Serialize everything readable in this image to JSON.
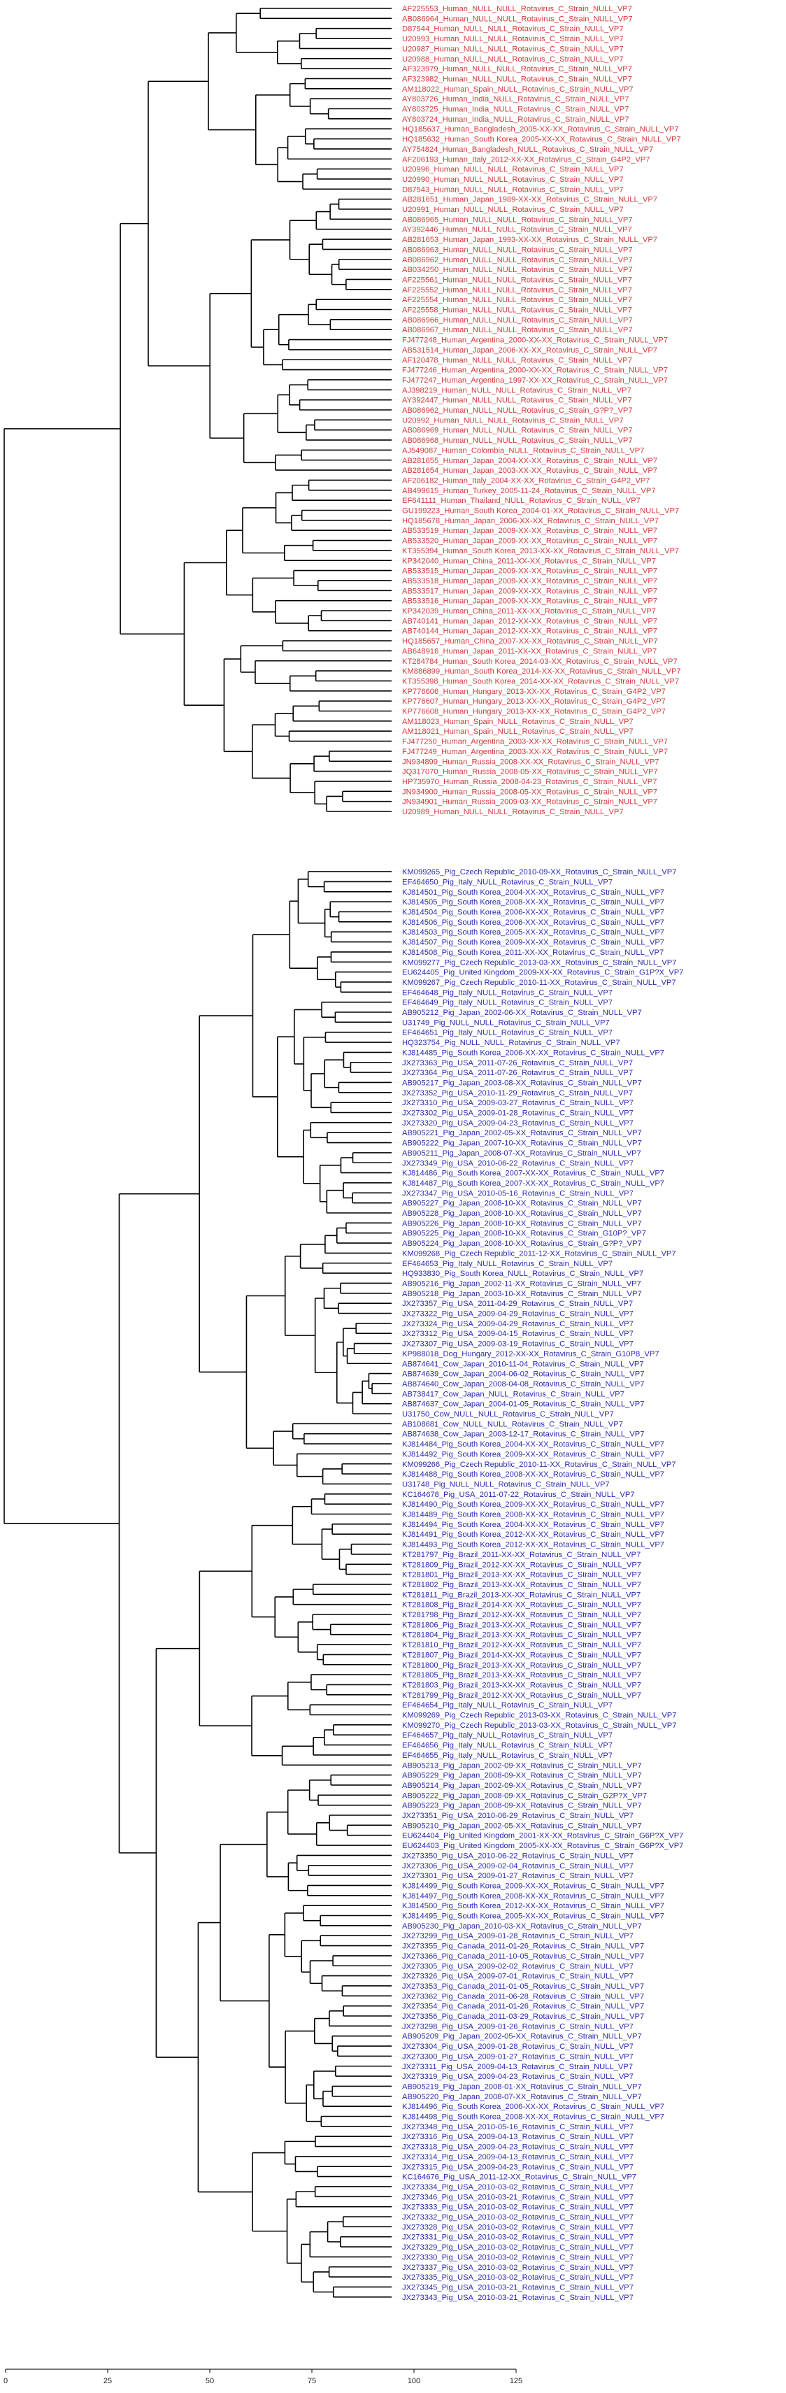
{
  "colors": {
    "human": "#d23a3a",
    "animal": "#2b2bb0",
    "branch": "#000000",
    "guide": "#cfcfcf",
    "axis": "#222222"
  },
  "scale_axis": {
    "min": 0,
    "max": 125,
    "ticks": [
      0,
      25,
      50,
      75,
      100,
      125
    ],
    "tick_labels": [
      "0",
      "25",
      "50",
      "75",
      "100",
      "125"
    ]
  },
  "human_leaves": [
    "AF225553_Human_NULL_NULL_Rotavirus_C_Strain_NULL_VP7",
    "AB086964_Human_NULL_NULL_Rotavirus_C_Strain_NULL_VP7",
    "D87544_Human_NULL_NULL_Rotavirus_C_Strain_NULL_VP7",
    "U20993_Human_NULL_NULL_Rotavirus_C_Strain_NULL_VP7",
    "U20987_Human_NULL_NULL_Rotavirus_C_Strain_NULL_VP7",
    "U20988_Human_NULL_NULL_Rotavirus_C_Strain_NULL_VP7",
    "AF323979_Human_NULL_NULL_Rotavirus_C_Strain_NULL_VP7",
    "AF323982_Human_NULL_NULL_Rotavirus_C_Strain_NULL_VP7",
    "AM118022_Human_Spain_NULL_Rotavirus_C_Strain_NULL_VP7",
    "AY803726_Human_India_NULL_Rotavirus_C_Strain_NULL_VP7",
    "AY803725_Human_India_NULL_Rotavirus_C_Strain_NULL_VP7",
    "AY803724_Human_India_NULL_Rotavirus_C_Strain_NULL_VP7",
    "HQ185637_Human_Bangladesh_2005-XX-XX_Rotavirus_C_Strain_NULL_VP7",
    "HQ185632_Human_South Korea_2005-XX-XX_Rotavirus_C_Strain_NULL_VP7",
    "AY754824_Human_Bangladesh_NULL_Rotavirus_C_Strain_NULL_VP7",
    "AF206193_Human_Italy_2012-XX-XX_Rotavirus_C_Strain_G4P2_VP7",
    "U20996_Human_NULL_NULL_Rotavirus_C_Strain_NULL_VP7",
    "U20990_Human_NULL_NULL_Rotavirus_C_Strain_NULL_VP7",
    "D87543_Human_NULL_NULL_Rotavirus_C_Strain_NULL_VP7",
    "AB281651_Human_Japan_1989-XX-XX_Rotavirus_C_Strain_NULL_VP7",
    "U20991_Human_NULL_NULL_Rotavirus_C_Strain_NULL_VP7",
    "AB086965_Human_NULL_NULL_Rotavirus_C_Strain_NULL_VP7",
    "AY392446_Human_NULL_NULL_Rotavirus_C_Strain_NULL_VP7",
    "AB281653_Human_Japan_1993-XX-XX_Rotavirus_C_Strain_NULL_VP7",
    "AB086963_Human_NULL_NULL_Rotavirus_C_Strain_NULL_VP7",
    "AB086962_Human_NULL_NULL_Rotavirus_C_Strain_NULL_VP7",
    "AB034250_Human_NULL_NULL_Rotavirus_C_Strain_NULL_VP7",
    "AF225561_Human_NULL_NULL_Rotavirus_C_Strain_NULL_VP7",
    "AF225552_Human_NULL_NULL_Rotavirus_C_Strain_NULL_VP7",
    "AF225554_Human_NULL_NULL_Rotavirus_C_Strain_NULL_VP7",
    "AF225558_Human_NULL_NULL_Rotavirus_C_Strain_NULL_VP7",
    "AB086966_Human_NULL_NULL_Rotavirus_C_Strain_NULL_VP7",
    "AB086967_Human_NULL_NULL_Rotavirus_C_Strain_NULL_VP7",
    "FJ477248_Human_Argentina_2000-XX-XX_Rotavirus_C_Strain_NULL_VP7",
    "AB531514_Human_Japan_2006-XX-XX_Rotavirus_C_Strain_NULL_VP7",
    "AF120478_Human_NULL_NULL_Rotavirus_C_Strain_NULL_VP7",
    "FJ477246_Human_Argentina_2000-XX-XX_Rotavirus_C_Strain_NULL_VP7",
    "FJ477247_Human_Argentina_1997-XX-XX_Rotavirus_C_Strain_NULL_VP7",
    "AJ398219_Human_NULL_NULL_Rotavirus_C_Strain_NULL_VP7",
    "AY392447_Human_NULL_NULL_Rotavirus_C_Strain_NULL_VP7",
    "AB086962_Human_NULL_NULL_Rotavirus_C_Strain_G?P?_VP7",
    "U20992_Human_NULL_NULL_Rotavirus_C_Strain_NULL_VP7",
    "AB086969_Human_NULL_NULL_Rotavirus_C_Strain_NULL_VP7",
    "AB086968_Human_NULL_NULL_Rotavirus_C_Strain_NULL_VP7",
    "AJ549087_Human_Colombia_NULL_Rotavirus_C_Strain_NULL_VP7",
    "AB281655_Human_Japan_2004-XX-XX_Rotavirus_C_Strain_NULL_VP7",
    "AB281654_Human_Japan_2003-XX-XX_Rotavirus_C_Strain_NULL_VP7",
    "AF206182_Human_Italy_2004-XX-XX_Rotavirus_C_Strain_G4P2_VP7",
    "AB499615_Human_Turkey_2005-11-24_Rotavirus_C_Strain_NULL_VP7",
    "EF641111_Human_Thailand_NULL_Rotavirus_C_Strain_NULL_VP7",
    "GU199223_Human_South Korea_2004-01-XX_Rotavirus_C_Strain_NULL_VP7",
    "HQ185678_Human_Japan_2006-XX-XX_Rotavirus_C_Strain_NULL_VP7",
    "AB533519_Human_Japan_2009-XX-XX_Rotavirus_C_Strain_NULL_VP7",
    "AB533520_Human_Japan_2009-XX-XX_Rotavirus_C_Strain_NULL_VP7",
    "KT355394_Human_South Korea_2013-XX-XX_Rotavirus_C_Strain_NULL_VP7",
    "KP342040_Human_China_2011-XX-XX_Rotavirus_C_Strain_NULL_VP7",
    "AB533515_Human_Japan_2009-XX-XX_Rotavirus_C_Strain_NULL_VP7",
    "AB533518_Human_Japan_2009-XX-XX_Rotavirus_C_Strain_NULL_VP7",
    "AB533517_Human_Japan_2009-XX-XX_Rotavirus_C_Strain_NULL_VP7",
    "AB533516_Human_Japan_2009-XX-XX_Rotavirus_C_Strain_NULL_VP7",
    "KP342039_Human_China_2011-XX-XX_Rotavirus_C_Strain_NULL_VP7",
    "AB740141_Human_Japan_2012-XX-XX_Rotavirus_C_Strain_NULL_VP7",
    "AB740144_Human_Japan_2012-XX-XX_Rotavirus_C_Strain_NULL_VP7",
    "HQ185657_Human_China_2007-XX-XX_Rotavirus_C_Strain_NULL_VP7",
    "AB648916_Human_Japan_2011-XX-XX_Rotavirus_C_Strain_NULL_VP7",
    "KT284784_Human_South Korea_2014-03-XX_Rotavirus_C_Strain_NULL_VP7",
    "KM886899_Human_South Korea_2014-XX-XX_Rotavirus_C_Strain_NULL_VP7",
    "KT355398_Human_South Korea_2014-XX-XX_Rotavirus_C_Strain_NULL_VP7",
    "KP776606_Human_Hungary_2013-XX-XX_Rotavirus_C_Strain_G4P2_VP7",
    "KP776607_Human_Hungary_2013-XX-XX_Rotavirus_C_Strain_G4P2_VP7",
    "KP776608_Human_Hungary_2013-XX-XX_Rotavirus_C_Strain_G4P2_VP7",
    "AM118023_Human_Spain_NULL_Rotavirus_C_Strain_NULL_VP7",
    "AM118021_Human_Spain_NULL_Rotavirus_C_Strain_NULL_VP7",
    "FJ477250_Human_Argentina_2003-XX-XX_Rotavirus_C_Strain_NULL_VP7",
    "FJ477249_Human_Argentina_2003-XX-XX_Rotavirus_C_Strain_NULL_VP7",
    "JN934899_Human_Russia_2008-XX-XX_Rotavirus_C_Strain_NULL_VP7",
    "JQ317070_Human_Russia_2008-05-XX_Rotavirus_C_Strain_NULL_VP7",
    "HP735970_Human_Russia_2008-04-23_Rotavirus_C_Strain_NULL_VP7",
    "JN934900_Human_Russia_2008-05-XX_Rotavirus_C_Strain_NULL_VP7",
    "JN934901_Human_Russia_2009-03-XX_Rotavirus_C_Strain_NULL_VP7",
    "U20989_Human_NULL_NULL_Rotavirus_C_Strain_NULL_VP7"
  ],
  "animal_leaves": [
    "KM099265_Pig_Czech Republic_2010-09-XX_Rotavirus_C_Strain_NULL_VP7",
    "EF464650_Pig_Italy_NULL_Rotavirus_C_Strain_NULL_VP7",
    "KJ814501_Pig_South Korea_2004-XX-XX_Rotavirus_C_Strain_NULL_VP7",
    "KJ814505_Pig_South Korea_2008-XX-XX_Rotavirus_C_Strain_NULL_VP7",
    "KJ814504_Pig_South Korea_2006-XX-XX_Rotavirus_C_Strain_NULL_VP7",
    "KJ814506_Pig_South Korea_2006-XX-XX_Rotavirus_C_Strain_NULL_VP7",
    "KJ814503_Pig_South Korea_2005-XX-XX_Rotavirus_C_Strain_NULL_VP7",
    "KJ814507_Pig_South Korea_2009-XX-XX_Rotavirus_C_Strain_NULL_VP7",
    "KJ814508_Pig_South Korea_2011-XX-XX_Rotavirus_C_Strain_NULL_VP7",
    "KM099277_Pig_Czech Republic_2013-03-XX_Rotavirus_C_Strain_NULL_VP7",
    "EU624405_Pig_United Kingdom_2009-XX-XX_Rotavirus_C_Strain_G1P?X_VP7",
    "KM099267_Pig_Czech Republic_2010-11-XX_Rotavirus_C_Strain_NULL_VP7",
    "EF464648_Pig_Italy_NULL_Rotavirus_C_Strain_NULL_VP7",
    "EF464649_Pig_Italy_NULL_Rotavirus_C_Strain_NULL_VP7",
    "AB905212_Pig_Japan_2002-06-XX_Rotavirus_C_Strain_NULL_VP7",
    "U31749_Pig_NULL_NULL_Rotavirus_C_Strain_NULL_VP7",
    "EF464651_Pig_Italy_NULL_Rotavirus_C_Strain_NULL_VP7",
    "HQ323754_Pig_NULL_NULL_Rotavirus_C_Strain_NULL_VP7",
    "KJ814485_Pig_South Korea_2006-XX-XX_Rotavirus_C_Strain_NULL_VP7",
    "JX273363_Pig_USA_2011-07-26_Rotavirus_C_Strain_NULL_VP7",
    "JX273364_Pig_USA_2011-07-26_Rotavirus_C_Strain_NULL_VP7",
    "AB905217_Pig_Japan_2003-08-XX_Rotavirus_C_Strain_NULL_VP7",
    "JX273352_Pig_USA_2010-11-29_Rotavirus_C_Strain_NULL_VP7",
    "JX273310_Pig_USA_2009-03-27_Rotavirus_C_Strain_NULL_VP7",
    "JX273302_Pig_USA_2009-01-28_Rotavirus_C_Strain_NULL_VP7",
    "JX273320_Pig_USA_2009-04-23_Rotavirus_C_Strain_NULL_VP7",
    "AB905221_Pig_Japan_2002-05-XX_Rotavirus_C_Strain_NULL_VP7",
    "AB905222_Pig_Japan_2007-10-XX_Rotavirus_C_Strain_NULL_VP7",
    "AB905211_Pig_Japan_2008-07-XX_Rotavirus_C_Strain_NULL_VP7",
    "JX273349_Pig_USA_2010-06-22_Rotavirus_C_Strain_NULL_VP7",
    "KJ814486_Pig_South Korea_2007-XX-XX_Rotavirus_C_Strain_NULL_VP7",
    "KJ814487_Pig_South Korea_2007-XX-XX_Rotavirus_C_Strain_NULL_VP7",
    "JX273347_Pig_USA_2010-05-16_Rotavirus_C_Strain_NULL_VP7",
    "AB905227_Pig_Japan_2008-10-XX_Rotavirus_C_Strain_NULL_VP7",
    "AB905228_Pig_Japan_2008-10-XX_Rotavirus_C_Strain_NULL_VP7",
    "AB905226_Pig_Japan_2008-10-XX_Rotavirus_C_Strain_NULL_VP7",
    "AB905225_Pig_Japan_2008-10-XX_Rotavirus_C_Strain_G10P?_VP7",
    "AB905224_Pig_Japan_2008-10-XX_Rotavirus_C_Strain_G?P?_VP7",
    "KM099268_Pig_Czech Republic_2011-12-XX_Rotavirus_C_Strain_NULL_VP7",
    "EF464653_Pig_Italy_NULL_Rotavirus_C_Strain_NULL_VP7",
    "HQ933830_Pig_South Korea_NULL_Rotavirus_C_Strain_NULL_VP7",
    "AB905216_Pig_Japan_2002-11-XX_Rotavirus_C_Strain_NULL_VP7",
    "AB905218_Pig_Japan_2003-10-XX_Rotavirus_C_Strain_NULL_VP7",
    "JX273357_Pig_USA_2011-04-29_Rotavirus_C_Strain_NULL_VP7",
    "JX273322_Pig_USA_2009-04-29_Rotavirus_C_Strain_NULL_VP7",
    "JX273324_Pig_USA_2009-04-29_Rotavirus_C_Strain_NULL_VP7",
    "JX273312_Pig_USA_2009-04-15_Rotavirus_C_Strain_NULL_VP7",
    "JX273307_Pig_USA_2009-03-19_Rotavirus_C_Strain_NULL_VP7",
    "KP988018_Dog_Hungary_2012-XX-XX_Rotavirus_C_Strain_G10P8_VP7",
    "AB874641_Cow_Japan_2010-11-04_Rotavirus_C_Strain_NULL_VP7",
    "AB874639_Cow_Japan_2004-06-02_Rotavirus_C_Strain_NULL_VP7",
    "AB874640_Cow_Japan_2008-04-08_Rotavirus_C_Strain_NULL_VP7",
    "AB738417_Cow_Japan_NULL_Rotavirus_C_Strain_NULL_VP7",
    "AB874637_Cow_Japan_2004-01-05_Rotavirus_C_Strain_NULL_VP7",
    "U31750_Cow_NULL_NULL_Rotavirus_C_Strain_NULL_VP7",
    "AB108681_Cow_NULL_NULL_Rotavirus_C_Strain_NULL_VP7",
    "AB874638_Cow_Japan_2003-12-17_Rotavirus_C_Strain_NULL_VP7",
    "KJ814484_Pig_South Korea_2004-XX-XX_Rotavirus_C_Strain_NULL_VP7",
    "KJ814492_Pig_South Korea_2009-XX-XX_Rotavirus_C_Strain_NULL_VP7",
    "KM099266_Pig_Czech Republic_2010-11-XX_Rotavirus_C_Strain_NULL_VP7",
    "KJ814488_Pig_South Korea_2008-XX-XX_Rotavirus_C_Strain_NULL_VP7",
    "U31748_Pig_NULL_NULL_Rotavirus_C_Strain_NULL_VP7",
    "KC164678_Pig_USA_2011-07-22_Rotavirus_C_Strain_NULL_VP7",
    "KJ814490_Pig_South Korea_2009-XX-XX_Rotavirus_C_Strain_NULL_VP7",
    "KJ814489_Pig_South Korea_2008-XX-XX_Rotavirus_C_Strain_NULL_VP7",
    "KJ814494_Pig_South Korea_2004-XX-XX_Rotavirus_C_Strain_NULL_VP7",
    "KJ814491_Pig_South Korea_2012-XX-XX_Rotavirus_C_Strain_NULL_VP7",
    "KJ814493_Pig_South Korea_2012-XX-XX_Rotavirus_C_Strain_NULL_VP7",
    "KT281797_Pig_Brazil_2011-XX-XX_Rotavirus_C_Strain_NULL_VP7",
    "KT281809_Pig_Brazil_2012-XX-XX_Rotavirus_C_Strain_NULL_VP7",
    "KT281801_Pig_Brazil_2013-XX-XX_Rotavirus_C_Strain_NULL_VP7",
    "KT281802_Pig_Brazil_2013-XX-XX_Rotavirus_C_Strain_NULL_VP7",
    "KT281811_Pig_Brazil_2013-XX-XX_Rotavirus_C_Strain_NULL_VP7",
    "KT281808_Pig_Brazil_2014-XX-XX_Rotavirus_C_Strain_NULL_VP7",
    "KT281798_Pig_Brazil_2012-XX-XX_Rotavirus_C_Strain_NULL_VP7",
    "KT281806_Pig_Brazil_2013-XX-XX_Rotavirus_C_Strain_NULL_VP7",
    "KT281804_Pig_Brazil_2013-XX-XX_Rotavirus_C_Strain_NULL_VP7",
    "KT281810_Pig_Brazil_2012-XX-XX_Rotavirus_C_Strain_NULL_VP7",
    "KT281807_Pig_Brazil_2014-XX-XX_Rotavirus_C_Strain_NULL_VP7",
    "KT281800_Pig_Brazil_2013-XX-XX_Rotavirus_C_Strain_NULL_VP7",
    "KT281805_Pig_Brazil_2013-XX-XX_Rotavirus_C_Strain_NULL_VP7",
    "KT281803_Pig_Brazil_2013-XX-XX_Rotavirus_C_Strain_NULL_VP7",
    "KT281799_Pig_Brazil_2012-XX-XX_Rotavirus_C_Strain_NULL_VP7",
    "EF464654_Pig_Italy_NULL_Rotavirus_C_Strain_NULL_VP7",
    "KM099269_Pig_Czech Republic_2013-03-XX_Rotavirus_C_Strain_NULL_VP7",
    "KM099270_Pig_Czech Republic_2013-03-XX_Rotavirus_C_Strain_NULL_VP7",
    "EF464657_Pig_Italy_NULL_Rotavirus_C_Strain_NULL_VP7",
    "EF464656_Pig_Italy_NULL_Rotavirus_C_Strain_NULL_VP7",
    "EF464655_Pig_Italy_NULL_Rotavirus_C_Strain_NULL_VP7",
    "AB905213_Pig_Japan_2002-09-XX_Rotavirus_C_Strain_NULL_VP7",
    "AB905229_Pig_Japan_2008-09-XX_Rotavirus_C_Strain_NULL_VP7",
    "AB905214_Pig_Japan_2002-09-XX_Rotavirus_C_Strain_NULL_VP7",
    "AB905222_Pig_Japan_2008-09-XX_Rotavirus_C_Strain_G2P?X_VP7",
    "AB905223_Pig_Japan_2008-09-XX_Rotavirus_C_Strain_NULL_VP7",
    "JX273351_Pig_USA_2010-06-29_Rotavirus_C_Strain_NULL_VP7",
    "AB905210_Pig_Japan_2002-05-XX_Rotavirus_C_Strain_NULL_VP7",
    "EU624404_Pig_United Kingdom_2001-XX-XX_Rotavirus_C_Strain_G6P?X_VP7",
    "EU624403_Pig_United Kingdom_2005-XX-XX_Rotavirus_C_Strain_G6P?X_VP7",
    "JX273350_Pig_USA_2010-06-22_Rotavirus_C_Strain_NULL_VP7",
    "JX273306_Pig_USA_2009-02-04_Rotavirus_C_Strain_NULL_VP7",
    "JX273301_Pig_USA_2009-01-27_Rotavirus_C_Strain_NULL_VP7",
    "KJ814499_Pig_South Korea_2009-XX-XX_Rotavirus_C_Strain_NULL_VP7",
    "KJ814497_Pig_South Korea_2008-XX-XX_Rotavirus_C_Strain_NULL_VP7",
    "KJ814500_Pig_South Korea_2012-XX-XX_Rotavirus_C_Strain_NULL_VP7",
    "KJ814495_Pig_South Korea_2005-XX-XX_Rotavirus_C_Strain_NULL_VP7",
    "AB905230_Pig_Japan_2010-03-XX_Rotavirus_C_Strain_NULL_VP7",
    "JX273299_Pig_USA_2009-01-28_Rotavirus_C_Strain_NULL_VP7",
    "JX273355_Pig_Canada_2011-01-26_Rotavirus_C_Strain_NULL_VP7",
    "JX273366_Pig_Canada_2011-10-05_Rotavirus_C_Strain_NULL_VP7",
    "JX273305_Pig_USA_2009-02-02_Rotavirus_C_Strain_NULL_VP7",
    "JX273326_Pig_USA_2009-07-01_Rotavirus_C_Strain_NULL_VP7",
    "JX273353_Pig_Canada_2011-01-05_Rotavirus_C_Strain_NULL_VP7",
    "JX273362_Pig_Canada_2011-06-28_Rotavirus_C_Strain_NULL_VP7",
    "JX273354_Pig_Canada_2011-01-26_Rotavirus_C_Strain_NULL_VP7",
    "JX273356_Pig_Canada_2011-03-29_Rotavirus_C_Strain_NULL_VP7",
    "JX273298_Pig_USA_2009-01-26_Rotavirus_C_Strain_NULL_VP7",
    "AB905209_Pig_Japan_2002-05-XX_Rotavirus_C_Strain_NULL_VP7",
    "JX273304_Pig_USA_2009-01-28_Rotavirus_C_Strain_NULL_VP7",
    "JX273300_Pig_USA_2009-01-27_Rotavirus_C_Strain_NULL_VP7",
    "JX273311_Pig_USA_2009-04-13_Rotavirus_C_Strain_NULL_VP7",
    "JX273319_Pig_USA_2009-04-23_Rotavirus_C_Strain_NULL_VP7",
    "AB905219_Pig_Japan_2008-01-XX_Rotavirus_C_Strain_NULL_VP7",
    "AB905220_Pig_Japan_2008-07-XX_Rotavirus_C_Strain_NULL_VP7",
    "KJ814496_Pig_South Korea_2006-XX-XX_Rotavirus_C_Strain_NULL_VP7",
    "KJ814498_Pig_South Korea_2008-XX-XX_Rotavirus_C_Strain_NULL_VP7",
    "JX273348_Pig_USA_2010-05-16_Rotavirus_C_Strain_NULL_VP7",
    "JX273316_Pig_USA_2009-04-13_Rotavirus_C_Strain_NULL_VP7",
    "JX273318_Pig_USA_2009-04-23_Rotavirus_C_Strain_NULL_VP7",
    "JX273314_Pig_USA_2009-04-13_Rotavirus_C_Strain_NULL_VP7",
    "JX273315_Pig_USA_2009-04-23_Rotavirus_C_Strain_NULL_VP7",
    "KC164676_Pig_USA_2011-12-XX_Rotavirus_C_Strain_NULL_VP7",
    "JX273334_Pig_USA_2010-03-02_Rotavirus_C_Strain_NULL_VP7",
    "JX273346_Pig_USA_2010-03-21_Rotavirus_C_Strain_NULL_VP7",
    "JX273333_Pig_USA_2010-03-02_Rotavirus_C_Strain_NULL_VP7",
    "JX273332_Pig_USA_2010-03-02_Rotavirus_C_Strain_NULL_VP7",
    "JX273328_Pig_USA_2010-03-02_Rotavirus_C_Strain_NULL_VP7",
    "JX273331_Pig_USA_2010-03-02_Rotavirus_C_Strain_NULL_VP7",
    "JX273329_Pig_USA_2010-03-02_Rotavirus_C_Strain_NULL_VP7",
    "JX273330_Pig_USA_2010-03-02_Rotavirus_C_Strain_NULL_VP7",
    "JX273337_Pig_USA_2010-03-02_Rotavirus_C_Strain_NULL_VP7",
    "JX273335_Pig_USA_2010-03-02_Rotavirus_C_Strain_NULL_VP7",
    "JX273345_Pig_USA_2010-03-21_Rotavirus_C_Strain_NULL_VP7",
    "JX273343_Pig_USA_2010-03-21_Rotavirus_C_Strain_NULL_VP7"
  ]
}
